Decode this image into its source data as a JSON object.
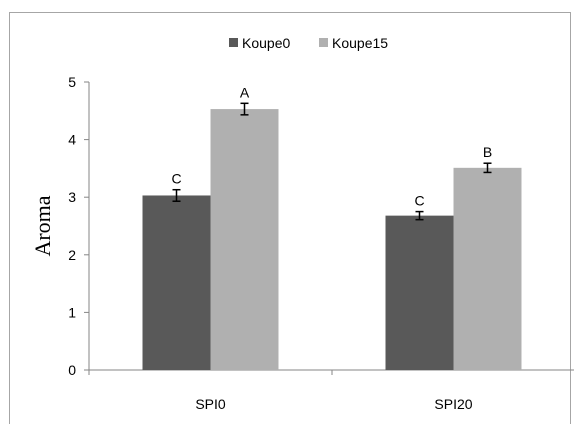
{
  "chart_data": {
    "type": "bar",
    "title": "",
    "xlabel": "",
    "ylabel": "Aroma",
    "ylim": [
      0,
      5
    ],
    "yticks": [
      "0",
      "1",
      "2",
      "3",
      "4",
      "5"
    ],
    "categories": [
      "SPI0",
      "SPI20"
    ],
    "series": [
      {
        "name": "Koupe0",
        "color": "#595959",
        "values": [
          3.03,
          2.68
        ],
        "errors": [
          0.1,
          0.07
        ],
        "labels": [
          "C",
          "C"
        ]
      },
      {
        "name": "Koupe15",
        "color": "#b0b0b0",
        "values": [
          4.53,
          3.51
        ],
        "errors": [
          0.1,
          0.08
        ],
        "labels": [
          "A",
          "B"
        ]
      }
    ],
    "legend_position": "top-center",
    "grid": false
  }
}
